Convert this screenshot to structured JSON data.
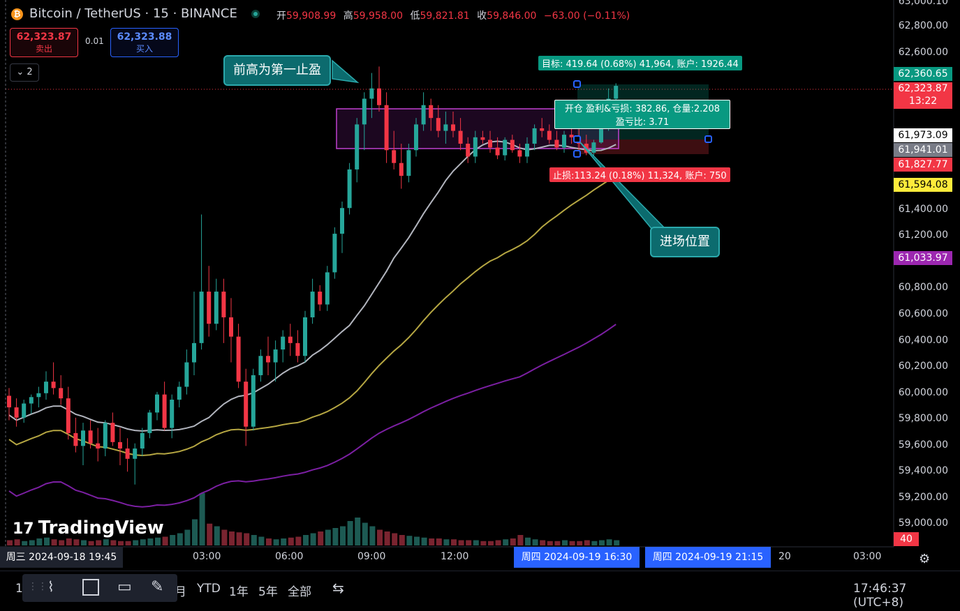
{
  "header": {
    "symbol": "Bitcoin / TetherUS · 15 · BINANCE",
    "ohlc": {
      "open_label": "开",
      "open": "59,908.99",
      "high_label": "高",
      "high": "59,958.00",
      "low_label": "低",
      "low": "59,821.81",
      "close_label": "收",
      "close": "59,846.00",
      "change": "−63.00 (−0.11%)"
    }
  },
  "trade": {
    "sell_price": "62,323.87",
    "sell_label": "卖出",
    "spread": "0.01",
    "buy_price": "62,323.88",
    "buy_label": "买入"
  },
  "indicators_toggle": "2",
  "price_axis": [
    "63,000.10",
    "62,800.00",
    "62,600.00",
    "61,400.00",
    "61,200.00",
    "60,800.00",
    "60,600.00",
    "60,400.00",
    "60,200.00",
    "60,000.00",
    "59,800.00",
    "59,600.00",
    "59,400.00",
    "59,200.00",
    "59,000.00"
  ],
  "price_tags": {
    "target": "62,360.65",
    "last_price": "62,323.87",
    "countdown": "13:22",
    "entry": "61,973.09",
    "ma1": "61,941.01",
    "stop": "61,827.77",
    "ma2": "61,594.08",
    "ma3": "61,033.97",
    "volume": "40"
  },
  "time_axis": {
    "start": "周三 2024-09-18   19:45",
    "ticks": [
      "03:00",
      "06:00",
      "09:00",
      "12:00",
      "20",
      "03:00"
    ],
    "cursor_start": "周四 2024-09-19   16:30",
    "cursor_end": "周四 2024-09-19   21:15"
  },
  "annotations": {
    "prev_high": "前高为第一止盈",
    "entry_pos": "进场位置"
  },
  "position": {
    "target_label": "目标: 419.64 (0.68%) 41,964, 账户: 1926.44",
    "open_label_1": "开仓 盈利&亏损: 382.86, 仓量:2.208",
    "open_label_2": "盈亏比: 3.71",
    "stop_label": "止损:113.24 (0.18%) 11,324, 账户: 750"
  },
  "toolbar": {
    "interval_1": "1",
    "month": "月",
    "ytd": "YTD",
    "year1": "1年",
    "year5": "5年",
    "all": "全部",
    "clock": "17:46:37 (UTC+8)"
  },
  "logo": "TradingView",
  "colors": {
    "up": "#26a69a",
    "down": "#f23645",
    "ma_white": "#b2b5be",
    "ma_yellow": "#b5a642",
    "ma_purple": "#7b1fa2",
    "accent": "#2962ff"
  },
  "chart_data": {
    "type": "candlestick",
    "ylim": [
      58900,
      63000
    ],
    "candles": [
      [
        59890,
        59950,
        59700,
        59800
      ],
      [
        59800,
        59870,
        59650,
        59720
      ],
      [
        59720,
        59860,
        59680,
        59830
      ],
      [
        59830,
        59900,
        59750,
        59880
      ],
      [
        59880,
        59960,
        59800,
        59910
      ],
      [
        59910,
        60080,
        59860,
        60000
      ],
      [
        60000,
        60150,
        59900,
        59950
      ],
      [
        59950,
        60050,
        59820,
        59870
      ],
      [
        59870,
        59960,
        59550,
        59600
      ],
      [
        59600,
        59720,
        59450,
        59500
      ],
      [
        59500,
        59680,
        59350,
        59620
      ],
      [
        59620,
        59700,
        59480,
        59520
      ],
      [
        59520,
        59640,
        59380,
        59480
      ],
      [
        59480,
        59700,
        59420,
        59680
      ],
      [
        59680,
        59760,
        59500,
        59530
      ],
      [
        59530,
        59640,
        59350,
        59480
      ],
      [
        59480,
        59560,
        59300,
        59400
      ],
      [
        59400,
        59520,
        59200,
        59480
      ],
      [
        59480,
        59640,
        59420,
        59600
      ],
      [
        59600,
        59780,
        59560,
        59760
      ],
      [
        59760,
        59920,
        59700,
        59900
      ],
      [
        59900,
        60000,
        59620,
        59640
      ],
      [
        59640,
        59900,
        59560,
        59860
      ],
      [
        59860,
        60000,
        59800,
        59960
      ],
      [
        59960,
        60250,
        59900,
        60150
      ],
      [
        60150,
        60700,
        60050,
        60300
      ],
      [
        60300,
        61300,
        60250,
        60700
      ],
      [
        60700,
        60900,
        60350,
        60450
      ],
      [
        60450,
        60800,
        60400,
        60700
      ],
      [
        60700,
        60800,
        60300,
        60500
      ],
      [
        60500,
        60650,
        60150,
        60350
      ],
      [
        60350,
        60450,
        59950,
        60000
      ],
      [
        60000,
        60100,
        59500,
        59650
      ],
      [
        59650,
        60100,
        59620,
        60050
      ],
      [
        60050,
        60250,
        60000,
        60200
      ],
      [
        60200,
        60350,
        60050,
        60150
      ],
      [
        60150,
        60320,
        60000,
        60250
      ],
      [
        60250,
        60400,
        60150,
        60350
      ],
      [
        60350,
        60450,
        60200,
        60300
      ],
      [
        60300,
        60400,
        60150,
        60200
      ],
      [
        60200,
        60550,
        60150,
        60500
      ],
      [
        60500,
        60800,
        60450,
        60700
      ],
      [
        60700,
        60750,
        60550,
        60600
      ],
      [
        60600,
        60900,
        60550,
        60850
      ],
      [
        60850,
        61200,
        60800,
        61150
      ],
      [
        61150,
        61400,
        61000,
        61350
      ],
      [
        61350,
        61700,
        61300,
        61650
      ],
      [
        61650,
        62050,
        61550,
        62000
      ],
      [
        62000,
        62250,
        61800,
        62200
      ],
      [
        62200,
        62400,
        62050,
        62280
      ],
      [
        62280,
        62450,
        62100,
        62150
      ],
      [
        62150,
        62250,
        61700,
        61800
      ],
      [
        61800,
        61950,
        61650,
        61700
      ],
      [
        61700,
        61850,
        61500,
        61600
      ],
      [
        61600,
        61850,
        61550,
        61800
      ],
      [
        61800,
        62050,
        61750,
        62000
      ],
      [
        62000,
        62250,
        61950,
        62150
      ],
      [
        62150,
        62200,
        61950,
        62050
      ],
      [
        62050,
        62150,
        61900,
        61950
      ],
      [
        61950,
        62100,
        61850,
        62000
      ],
      [
        62000,
        62100,
        61900,
        61950
      ],
      [
        61950,
        62050,
        61800,
        61850
      ],
      [
        61850,
        61900,
        61700,
        61750
      ],
      [
        61750,
        61950,
        61700,
        61900
      ],
      [
        61900,
        61950,
        61850,
        61880
      ],
      [
        61880,
        61950,
        61780,
        61820
      ],
      [
        61820,
        61900,
        61730,
        61760
      ],
      [
        61760,
        61900,
        61720,
        61880
      ],
      [
        61880,
        61920,
        61780,
        61800
      ],
      [
        61800,
        61850,
        61700,
        61750
      ],
      [
        61750,
        61900,
        61700,
        61850
      ],
      [
        61850,
        62000,
        61800,
        61970
      ],
      [
        61970,
        62050,
        61900,
        61950
      ],
      [
        61950,
        62000,
        61850,
        61880
      ],
      [
        61880,
        61950,
        61800,
        61820
      ],
      [
        61820,
        61950,
        61780,
        61920
      ],
      [
        61920,
        62000,
        61850,
        61900
      ],
      [
        61900,
        62000,
        61800,
        61850
      ],
      [
        61850,
        61920,
        61760,
        61780
      ],
      [
        61780,
        61880,
        61730,
        61860
      ],
      [
        61860,
        62100,
        61850,
        62000
      ],
      [
        62000,
        62280,
        61950,
        62200
      ],
      [
        62200,
        62320,
        62150,
        62300
      ]
    ],
    "volume": [
      6,
      7,
      5,
      6,
      8,
      9,
      7,
      6,
      8,
      7,
      6,
      5,
      6,
      7,
      6,
      5,
      5,
      6,
      7,
      8,
      9,
      10,
      12,
      14,
      18,
      30,
      60,
      25,
      22,
      18,
      16,
      15,
      14,
      12,
      10,
      8,
      7,
      8,
      9,
      10,
      12,
      14,
      16,
      18,
      20,
      22,
      28,
      32,
      26,
      22,
      18,
      16,
      14,
      12,
      11,
      10,
      9,
      8,
      8,
      7,
      7,
      6,
      6,
      6,
      5,
      5,
      6,
      7,
      8,
      12,
      9,
      7,
      6,
      5,
      5,
      6,
      5,
      5,
      6,
      5,
      6,
      7,
      6
    ]
  }
}
